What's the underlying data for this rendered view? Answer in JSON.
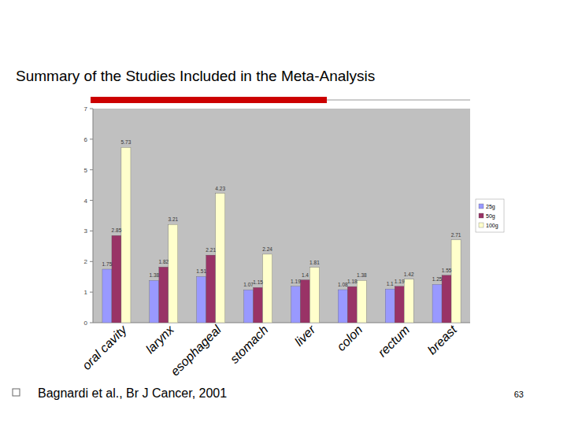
{
  "chart_data": {
    "type": "bar",
    "title": "Summary of the Studies Included in the Meta-Analysis",
    "source": "Bagnardi et al., Br J Cancer, 2001",
    "page_number": "63",
    "categories": [
      "oral cavity",
      "larynx",
      "esophageal",
      "stomach",
      "liver",
      "colon",
      "rectum",
      "breast"
    ],
    "series": [
      {
        "name": "25g",
        "color": "#9999ff",
        "values": [
          1.75,
          1.38,
          1.51,
          1.07,
          1.19,
          1.08,
          1.1,
          1.25
        ]
      },
      {
        "name": "50g",
        "color": "#993366",
        "values": [
          2.85,
          1.82,
          2.21,
          1.15,
          1.4,
          1.18,
          1.19,
          1.55
        ]
      },
      {
        "name": "100g",
        "color": "#ffffcc",
        "values": [
          5.73,
          3.21,
          4.23,
          2.24,
          1.81,
          1.38,
          1.42,
          2.71
        ]
      }
    ],
    "ylim": [
      0,
      7
    ],
    "yticks": [
      0,
      1,
      2,
      3,
      4,
      5,
      6,
      7
    ],
    "grid": false,
    "legend": "right",
    "data_labels": true
  }
}
